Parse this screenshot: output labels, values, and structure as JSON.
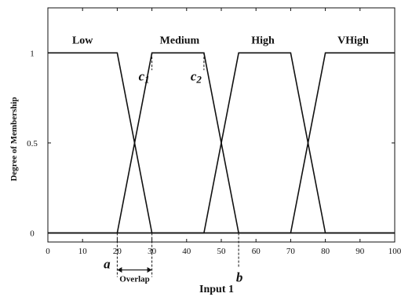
{
  "chart_data": {
    "type": "line",
    "xlabel": "Input 1",
    "ylabel": "Degree of Membership",
    "xlim": [
      0,
      100
    ],
    "ylim": [
      -0.05,
      1.25
    ],
    "xticks": [
      "0",
      "10",
      "20",
      "30",
      "40",
      "50",
      "60",
      "70",
      "80",
      "90",
      "100"
    ],
    "yticks": [
      {
        "value": 0,
        "label": "0"
      },
      {
        "value": 0.5,
        "label": "0.5"
      },
      {
        "value": 1,
        "label": "1"
      }
    ],
    "grid": false,
    "series": [
      {
        "name": "Low",
        "x": [
          0,
          20,
          30,
          100
        ],
        "y": [
          1,
          1,
          0,
          0
        ]
      },
      {
        "name": "Medium",
        "x": [
          0,
          20,
          30,
          45,
          55,
          100
        ],
        "y": [
          0,
          0,
          1,
          1,
          0,
          0
        ]
      },
      {
        "name": "High",
        "x": [
          0,
          45,
          55,
          70,
          80,
          100
        ],
        "y": [
          0,
          0,
          1,
          1,
          0,
          0
        ]
      },
      {
        "name": "VHigh",
        "x": [
          0,
          70,
          80,
          100
        ],
        "y": [
          0,
          0,
          1,
          1
        ]
      }
    ],
    "set_labels": [
      {
        "text": "Low",
        "x": 10
      },
      {
        "text": "Medium",
        "x": 38
      },
      {
        "text": "High",
        "x": 62
      },
      {
        "text": "VHigh",
        "x": 88
      }
    ],
    "annotations": {
      "c1": {
        "letter": "c",
        "sub": "1",
        "x": 30,
        "y": 1
      },
      "c2": {
        "letter": "c",
        "sub": "2",
        "x": 45,
        "y": 1
      },
      "a": {
        "text": "a",
        "x": 20
      },
      "b": {
        "text": "b",
        "x": 55
      },
      "overlap": {
        "text": "Overlap",
        "from": 20,
        "to": 30
      }
    }
  }
}
